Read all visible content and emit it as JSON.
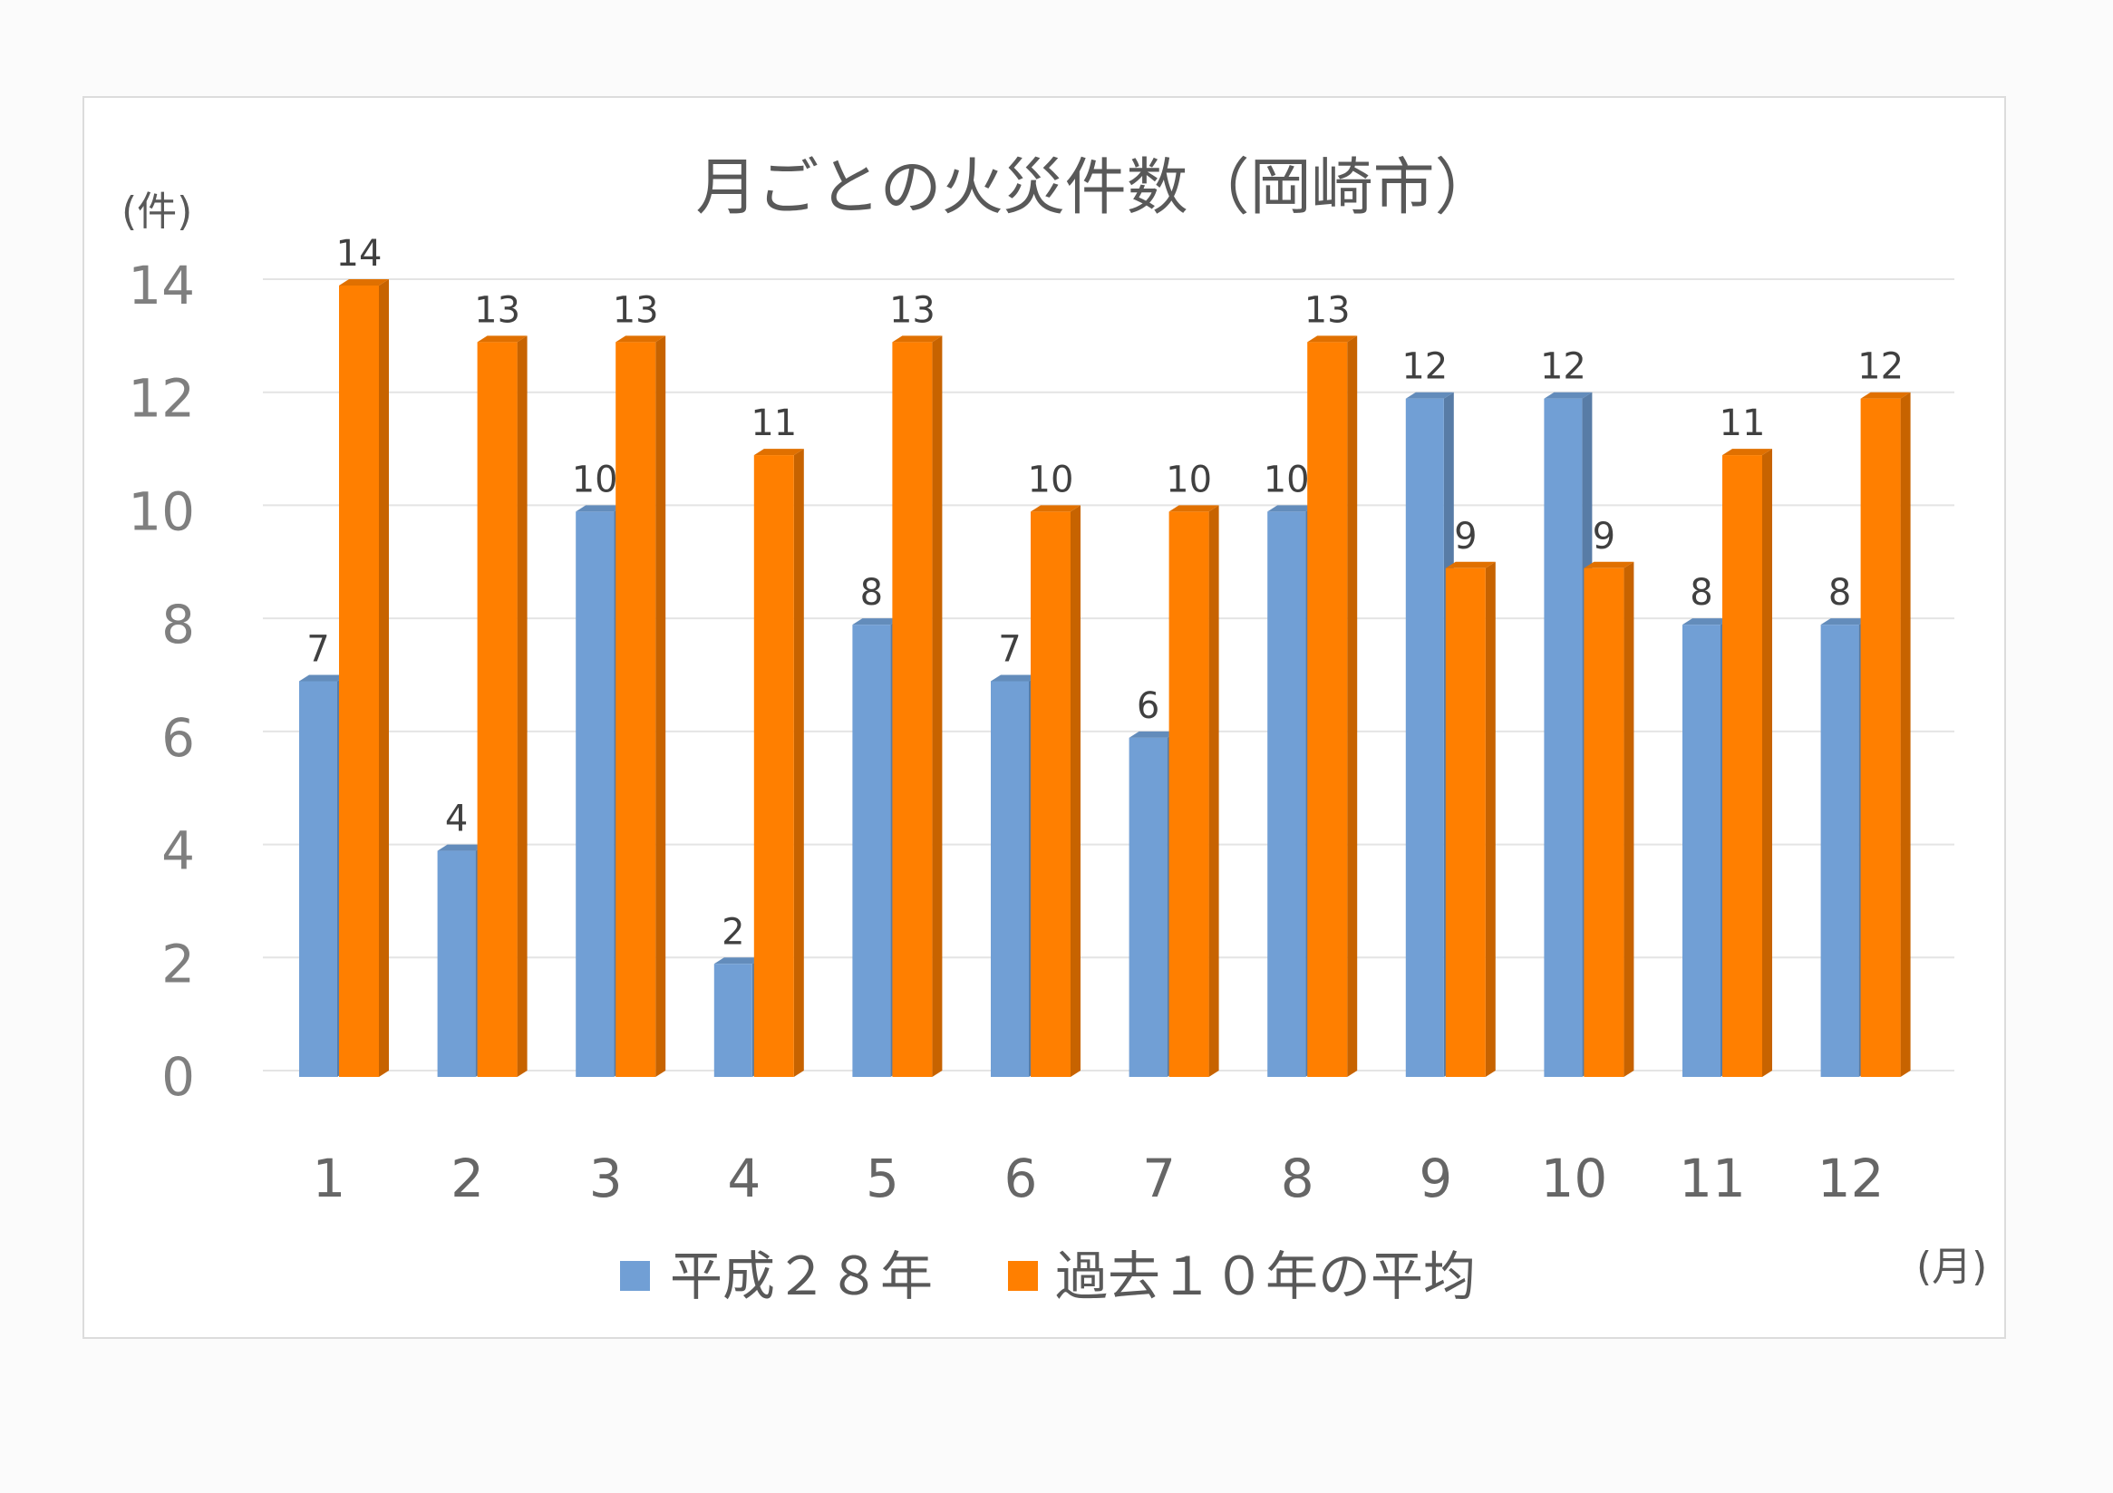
{
  "chart_data": {
    "type": "bar",
    "title": "月ごとの火災件数（岡崎市）",
    "ylabel": "(件)",
    "xlabel": "(月)",
    "categories": [
      "1",
      "2",
      "3",
      "4",
      "5",
      "6",
      "7",
      "8",
      "9",
      "10",
      "11",
      "12"
    ],
    "yticks": [
      "0",
      "2",
      "4",
      "6",
      "8",
      "10",
      "12",
      "14"
    ],
    "ylim": [
      0,
      14
    ],
    "grid": true,
    "legend_position": "bottom",
    "series": [
      {
        "name": "平成２８年",
        "values": [
          7,
          4,
          10,
          2,
          8,
          7,
          6,
          10,
          12,
          12,
          8,
          8
        ],
        "color": "#719fd5"
      },
      {
        "name": "過去１０年の平均",
        "values": [
          14,
          13,
          13,
          11,
          13,
          10,
          10,
          13,
          9,
          9,
          11,
          12
        ],
        "color": "#ff7f00"
      }
    ]
  }
}
